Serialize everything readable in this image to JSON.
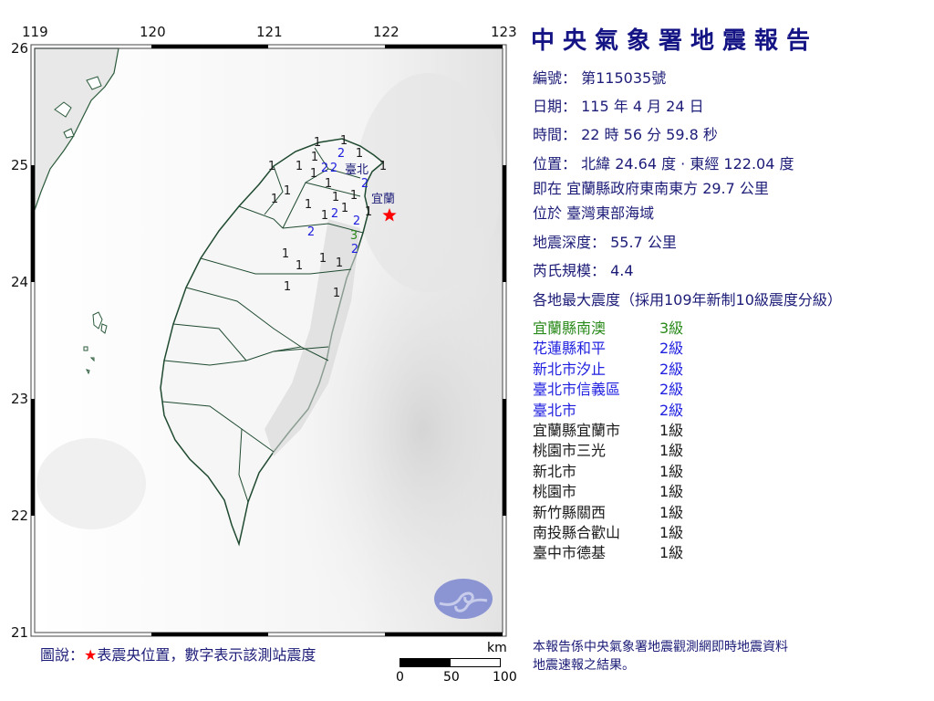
{
  "map": {
    "lon_ticks": [
      "119",
      "120",
      "121",
      "122",
      "123"
    ],
    "lat_ticks": [
      "26",
      "25",
      "24",
      "23",
      "22",
      "21"
    ],
    "epicenter": {
      "lat": 24.64,
      "lon": 122.04,
      "color": "#ff0000",
      "icon": "star-icon"
    },
    "place_labels": [
      "臺北",
      "宜蘭"
    ],
    "station_intensities": [
      "1",
      "1",
      "1",
      "2",
      "1",
      "2",
      "2",
      "1",
      "1",
      "1",
      "1",
      "1",
      "1",
      "2",
      "1",
      "1",
      "1",
      "1",
      "1",
      "1",
      "2",
      "2",
      "1",
      "2",
      "3",
      "2",
      "1",
      "1",
      "1",
      "1",
      "1",
      "1"
    ],
    "intensity_colors": {
      "1": "#1a1a1a",
      "2": "#1f1fe0",
      "3": "#2a8a1a"
    },
    "logo": "cwa-logo"
  },
  "report": {
    "title": "中央氣象署地震報告",
    "number_label": "編號：",
    "number": "第115035號",
    "date_label": "日期：",
    "date": "115 年 4 月 24 日",
    "time_label": "時間：",
    "time": "22 時 56 分 59.8 秒",
    "location_label": "位置：",
    "location": "北緯 24.64 度 · 東經 122.04 度",
    "relative_label": "即在",
    "relative": "宜蘭縣政府東南東方 29.7 公里",
    "region_label": "位於",
    "region": "臺灣東部海域",
    "depth_label": "地震深度：",
    "depth": "55.7 公里",
    "magnitude_label": "芮氏規模：",
    "magnitude": "4.4",
    "intensity_header": "各地最大震度（採用109年新制10級震度分級）",
    "intensities": [
      {
        "place": "宜蘭縣南澳",
        "level": "3級",
        "color": "#2a8a1a"
      },
      {
        "place": "花蓮縣和平",
        "level": "2級",
        "color": "#1f1fe0"
      },
      {
        "place": "新北市汐止",
        "level": "2級",
        "color": "#1f1fe0"
      },
      {
        "place": "臺北市信義區",
        "level": "2級",
        "color": "#1f1fe0"
      },
      {
        "place": "臺北市",
        "level": "2級",
        "color": "#1f1fe0"
      },
      {
        "place": "宜蘭縣宜蘭市",
        "level": "1級",
        "color": "#1a1a1a"
      },
      {
        "place": "桃園市三光",
        "level": "1級",
        "color": "#1a1a1a"
      },
      {
        "place": "新北市",
        "level": "1級",
        "color": "#1a1a1a"
      },
      {
        "place": "桃園市",
        "level": "1級",
        "color": "#1a1a1a"
      },
      {
        "place": "新竹縣關西",
        "level": "1級",
        "color": "#1a1a1a"
      },
      {
        "place": "南投縣合歡山",
        "level": "1級",
        "color": "#1a1a1a"
      },
      {
        "place": "臺中市德基",
        "level": "1級",
        "color": "#1a1a1a"
      }
    ],
    "footnote_1": "本報告係中央氣象署地震觀測網即時地震資料",
    "footnote_2": "地震速報之結果。"
  },
  "legend": {
    "prefix": "圖說：",
    "star": "★",
    "text": "表震央位置，數字表示該測站震度"
  },
  "scale_bar": {
    "unit": "km",
    "labels": [
      "0",
      "50",
      "100"
    ]
  }
}
